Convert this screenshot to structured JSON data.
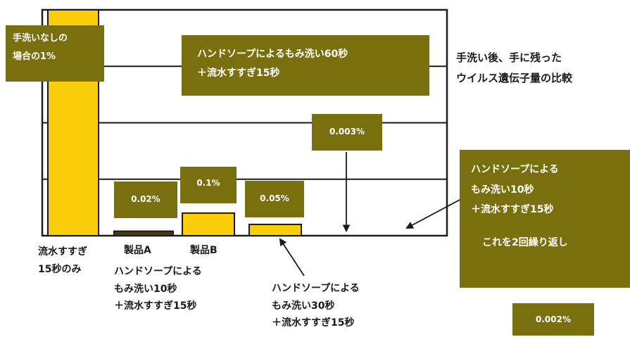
{
  "chart_data": {
    "type": "bar",
    "title": "手洗い後、手に残ったウイルス遺伝子量の比較",
    "unit": "%",
    "categories": [
      "流水すすぎ15秒のみ",
      "製品A ハンドソープによるもみ洗い10秒＋流水すすぎ15秒",
      "製品B ハンドソープによるもみ洗い10秒＋流水すすぎ15秒",
      "ハンドソープによるもみ洗い30秒＋流水すすぎ15秒",
      "ハンドソープによるもみ洗い60秒＋流水すすぎ15秒",
      "ハンドソープによるもみ洗い10秒＋流水すすぎ15秒 これを2回繰り返し"
    ],
    "values": [
      1,
      0.02,
      0.1,
      0.05,
      0.003,
      0.002
    ],
    "value_labels": [
      "手洗いなしの場合の1%",
      "0.02%",
      "0.1%",
      "0.05%",
      "0.003%",
      "0.002%"
    ],
    "bar_colors": [
      "#fccd0a",
      "#4a3a12",
      "#fccd0a",
      "#fccd0a",
      "#fccd0a",
      "#fccd0a"
    ],
    "gridlines": 4,
    "grid": true,
    "legend": "none"
  },
  "title_lines": [
    "手洗い後、手に残った",
    "ウイルス遺伝子量の比較"
  ],
  "colors": {
    "annotation_box": "#7a6f0f",
    "bar": "#fccd0a",
    "bar_dark": "#4a3a12",
    "frame": "#1a1a1a"
  },
  "annotations": {
    "no_wash": [
      "手洗いなしの",
      "場合の1%"
    ],
    "wash60": [
      "ハンドソープによるもみ洗い60秒",
      "＋流水すすぎ15秒"
    ],
    "val_a": "0.02%",
    "val_b": "0.1%",
    "val_30": "0.05%",
    "val_60": "0.003%",
    "wash_twice": [
      "ハンドソープによる",
      "もみ洗い10秒",
      "＋流水すすぎ15秒",
      "これを2回繰り返し"
    ],
    "val_twice": "0.002%"
  },
  "axis_labels": {
    "rinse_only": [
      "流水すすぎ",
      "15秒のみ"
    ],
    "product_a": "製品A",
    "product_b": "製品B",
    "soap10": [
      "ハンドソープによる",
      "もみ洗い10秒",
      "＋流水すすぎ15秒"
    ],
    "soap30": [
      "ハンドソープによる",
      "もみ洗い30秒",
      "＋流水すすぎ15秒"
    ]
  }
}
